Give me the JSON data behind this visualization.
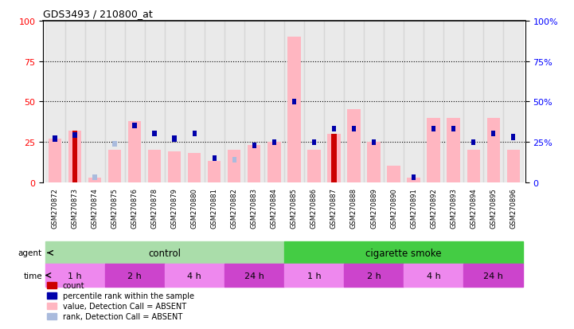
{
  "title": "GDS3493 / 210800_at",
  "samples": [
    "GSM270872",
    "GSM270873",
    "GSM270874",
    "GSM270875",
    "GSM270876",
    "GSM270878",
    "GSM270879",
    "GSM270880",
    "GSM270881",
    "GSM270882",
    "GSM270883",
    "GSM270884",
    "GSM270885",
    "GSM270886",
    "GSM270887",
    "GSM270888",
    "GSM270889",
    "GSM270890",
    "GSM270891",
    "GSM270892",
    "GSM270893",
    "GSM270894",
    "GSM270895",
    "GSM270896"
  ],
  "pink_values": [
    27,
    32,
    3,
    20,
    38,
    20,
    19,
    18,
    13,
    20,
    23,
    25,
    90,
    20,
    30,
    45,
    25,
    10,
    3,
    40,
    40,
    20,
    40,
    20
  ],
  "red_values": [
    0,
    32,
    0,
    0,
    0,
    0,
    0,
    0,
    0,
    0,
    0,
    0,
    0,
    0,
    30,
    0,
    0,
    0,
    0,
    0,
    0,
    0,
    0,
    0
  ],
  "blue_values": [
    27,
    29,
    0,
    0,
    35,
    30,
    27,
    30,
    15,
    0,
    23,
    25,
    50,
    25,
    33,
    33,
    25,
    0,
    3,
    33,
    33,
    25,
    30,
    28
  ],
  "lightblue_values": [
    0,
    0,
    3,
    24,
    0,
    0,
    0,
    0,
    0,
    14,
    0,
    0,
    0,
    0,
    0,
    0,
    0,
    0,
    0,
    0,
    0,
    0,
    0,
    0
  ],
  "ylim": [
    0,
    100
  ],
  "yticks": [
    0,
    25,
    50,
    75,
    100
  ],
  "grid_values": [
    25,
    50,
    75
  ],
  "pink_color": "#ffb6c1",
  "red_color": "#cc0000",
  "blue_color": "#0000aa",
  "lightblue_color": "#aabbdd",
  "bg_color": "#cccccc",
  "control_color": "#aaddaa",
  "smoke_color": "#44cc44",
  "time_color_light": "#ee88ee",
  "time_color_dark": "#cc44cc",
  "legend_labels": [
    "count",
    "percentile rank within the sample",
    "value, Detection Call = ABSENT",
    "rank, Detection Call = ABSENT"
  ],
  "legend_colors": [
    "#cc0000",
    "#0000aa",
    "#ffb6c1",
    "#aabbdd"
  ]
}
